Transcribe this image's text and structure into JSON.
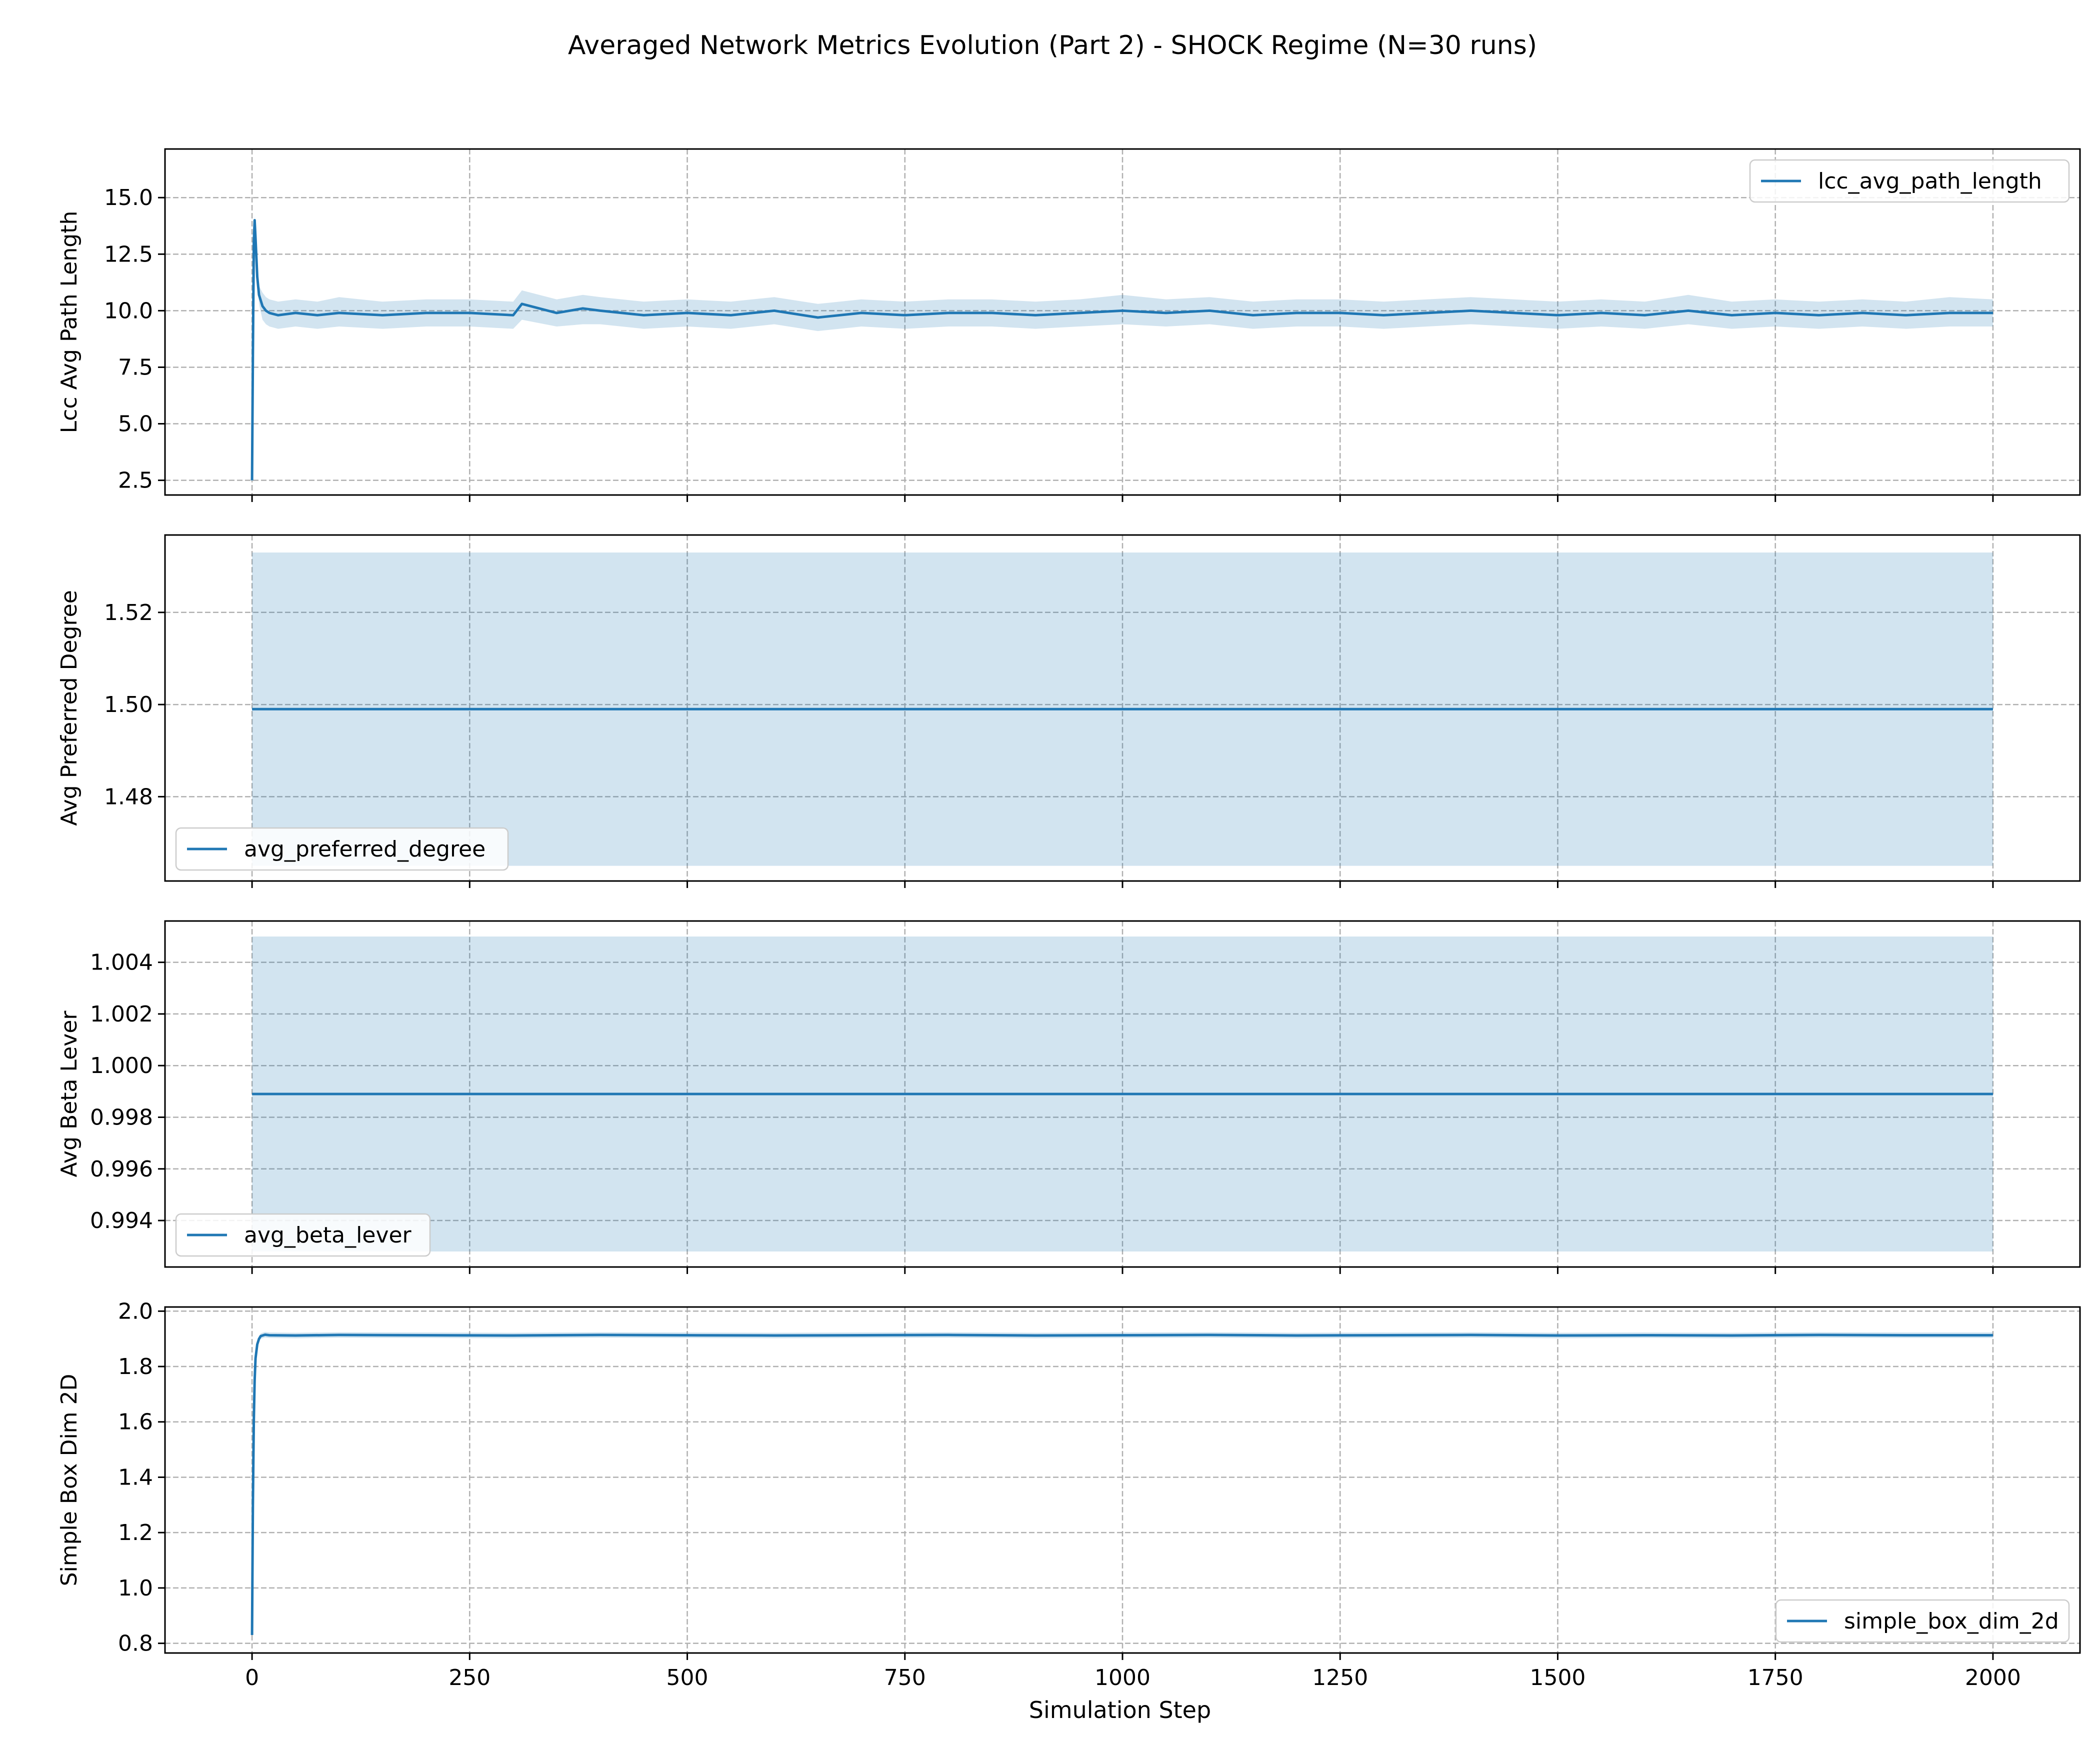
{
  "figure": {
    "title": "Averaged Network Metrics Evolution (Part 2) - SHOCK Regime (N=30 runs)",
    "xlabel": "Simulation Step"
  },
  "colors": {
    "line": "#1f77b4",
    "band": "#1f77b4",
    "grid": "#b0b0b0",
    "axes": "#000000"
  },
  "chart_data": [
    {
      "type": "line",
      "name": "panel-lcc-avg-path-length",
      "ylabel": "Lcc Avg Path Length",
      "xlim": [
        -100,
        2100
      ],
      "ylim": [
        1.85,
        17.15
      ],
      "xticks": [
        0,
        250,
        500,
        750,
        1000,
        1250,
        1500,
        1750,
        2000
      ],
      "yticks": [
        2.5,
        5.0,
        7.5,
        10.0,
        12.5,
        15.0
      ],
      "ytick_labels": [
        "2.5",
        "5.0",
        "7.5",
        "10.0",
        "12.5",
        "15.0"
      ],
      "legend": {
        "label": "lcc_avg_path_length",
        "loc": "upper-right"
      },
      "series": {
        "name": "lcc_avg_path_length",
        "x": [
          0,
          1,
          2,
          3,
          4,
          6,
          8,
          12,
          16,
          20,
          30,
          50,
          75,
          100,
          150,
          200,
          250,
          300,
          310,
          350,
          380,
          400,
          450,
          500,
          550,
          600,
          650,
          700,
          750,
          800,
          850,
          900,
          950,
          1000,
          1050,
          1100,
          1150,
          1200,
          1250,
          1300,
          1350,
          1400,
          1450,
          1500,
          1550,
          1600,
          1650,
          1700,
          1750,
          1800,
          1850,
          1900,
          1950,
          2000
        ],
        "y": [
          2.5,
          8.0,
          13.0,
          14.0,
          13.2,
          11.5,
          10.7,
          10.2,
          10.0,
          9.9,
          9.8,
          9.9,
          9.8,
          9.9,
          9.8,
          9.9,
          9.9,
          9.8,
          10.3,
          9.9,
          10.1,
          10.0,
          9.8,
          9.9,
          9.8,
          10.0,
          9.7,
          9.9,
          9.8,
          9.9,
          9.9,
          9.8,
          9.9,
          10.0,
          9.9,
          10.0,
          9.8,
          9.9,
          9.9,
          9.8,
          9.9,
          10.0,
          9.9,
          9.8,
          9.9,
          9.8,
          10.0,
          9.8,
          9.9,
          9.8,
          9.9,
          9.8,
          9.9,
          9.9
        ],
        "band_lower": [
          2.5,
          7.9,
          12.8,
          13.8,
          13.0,
          11.3,
          10.3,
          9.6,
          9.4,
          9.3,
          9.2,
          9.3,
          9.2,
          9.3,
          9.2,
          9.3,
          9.3,
          9.2,
          9.6,
          9.3,
          9.4,
          9.4,
          9.2,
          9.3,
          9.2,
          9.4,
          9.1,
          9.3,
          9.2,
          9.3,
          9.3,
          9.2,
          9.3,
          9.4,
          9.3,
          9.4,
          9.2,
          9.3,
          9.3,
          9.2,
          9.3,
          9.4,
          9.3,
          9.2,
          9.3,
          9.2,
          9.4,
          9.2,
          9.3,
          9.2,
          9.3,
          9.2,
          9.3,
          9.3
        ],
        "band_upper": [
          2.5,
          8.1,
          13.2,
          14.2,
          13.4,
          11.7,
          11.1,
          10.8,
          10.6,
          10.5,
          10.4,
          10.5,
          10.4,
          10.6,
          10.4,
          10.5,
          10.5,
          10.4,
          10.9,
          10.5,
          10.7,
          10.6,
          10.4,
          10.5,
          10.4,
          10.6,
          10.3,
          10.5,
          10.4,
          10.5,
          10.5,
          10.4,
          10.5,
          10.7,
          10.5,
          10.6,
          10.4,
          10.5,
          10.5,
          10.4,
          10.5,
          10.6,
          10.5,
          10.4,
          10.5,
          10.4,
          10.7,
          10.4,
          10.5,
          10.4,
          10.5,
          10.4,
          10.6,
          10.5
        ]
      }
    },
    {
      "type": "line",
      "name": "panel-avg-preferred-degree",
      "ylabel": "Avg Preferred Degree",
      "xlim": [
        -100,
        2100
      ],
      "ylim": [
        1.4617,
        1.5368
      ],
      "xticks": [
        0,
        250,
        500,
        750,
        1000,
        1250,
        1500,
        1750,
        2000
      ],
      "yticks": [
        1.48,
        1.5,
        1.52
      ],
      "ytick_labels": [
        "1.48",
        "1.50",
        "1.52"
      ],
      "legend": {
        "label": "avg_preferred_degree",
        "loc": "lower-left"
      },
      "series": {
        "name": "avg_preferred_degree",
        "x": [
          0,
          2000
        ],
        "y": [
          1.499,
          1.499
        ],
        "band_lower": [
          1.465,
          1.465
        ],
        "band_upper": [
          1.533,
          1.533
        ]
      }
    },
    {
      "type": "line",
      "name": "panel-avg-beta-lever",
      "ylabel": "Avg Beta Lever",
      "xlim": [
        -100,
        2100
      ],
      "ylim": [
        0.9922,
        1.0056
      ],
      "xticks": [
        0,
        250,
        500,
        750,
        1000,
        1250,
        1500,
        1750,
        2000
      ],
      "yticks": [
        0.994,
        0.996,
        0.998,
        1.0,
        1.002,
        1.004
      ],
      "ytick_labels": [
        "0.994",
        "0.996",
        "0.998",
        "1.000",
        "1.002",
        "1.004"
      ],
      "legend": {
        "label": "avg_beta_lever",
        "loc": "lower-left"
      },
      "series": {
        "name": "avg_beta_lever",
        "x": [
          0,
          2000
        ],
        "y": [
          0.9989,
          0.9989
        ],
        "band_lower": [
          0.9928,
          0.9928
        ],
        "band_upper": [
          1.005,
          1.005
        ]
      }
    },
    {
      "type": "line",
      "name": "panel-simple-box-dim-2d",
      "ylabel": "Simple Box Dim 2D",
      "xlim": [
        -100,
        2100
      ],
      "ylim": [
        0.765,
        2.015
      ],
      "xticks": [
        0,
        250,
        500,
        750,
        1000,
        1250,
        1500,
        1750,
        2000
      ],
      "xtick_labels": [
        "0",
        "250",
        "500",
        "750",
        "1000",
        "1250",
        "1500",
        "1750",
        "2000"
      ],
      "yticks": [
        0.8,
        1.0,
        1.2,
        1.4,
        1.6,
        1.8,
        2.0
      ],
      "ytick_labels": [
        "0.8",
        "1.0",
        "1.2",
        "1.4",
        "1.6",
        "1.8",
        "2.0"
      ],
      "legend": {
        "label": "simple_box_dim_2d",
        "loc": "lower-right"
      },
      "series": {
        "name": "simple_box_dim_2d",
        "x": [
          0,
          1,
          2,
          3,
          4,
          6,
          8,
          10,
          15,
          20,
          50,
          100,
          200,
          300,
          400,
          500,
          600,
          700,
          800,
          900,
          1000,
          1100,
          1200,
          1300,
          1400,
          1500,
          1600,
          1700,
          1800,
          1900,
          2000
        ],
        "y": [
          0.83,
          1.3,
          1.6,
          1.75,
          1.83,
          1.88,
          1.9,
          1.91,
          1.915,
          1.913,
          1.912,
          1.914,
          1.913,
          1.912,
          1.914,
          1.913,
          1.912,
          1.913,
          1.914,
          1.912,
          1.913,
          1.914,
          1.912,
          1.913,
          1.914,
          1.912,
          1.913,
          1.912,
          1.914,
          1.913,
          1.913
        ],
        "band_lower": [
          0.83,
          1.29,
          1.59,
          1.74,
          1.82,
          1.87,
          1.89,
          1.9,
          1.905,
          1.903,
          1.902,
          1.904,
          1.903,
          1.902,
          1.904,
          1.903,
          1.902,
          1.903,
          1.904,
          1.902,
          1.903,
          1.904,
          1.902,
          1.903,
          1.904,
          1.902,
          1.903,
          1.902,
          1.904,
          1.903,
          1.903
        ],
        "band_upper": [
          0.83,
          1.31,
          1.61,
          1.76,
          1.84,
          1.89,
          1.91,
          1.92,
          1.925,
          1.923,
          1.922,
          1.924,
          1.923,
          1.922,
          1.924,
          1.923,
          1.922,
          1.923,
          1.924,
          1.922,
          1.923,
          1.924,
          1.922,
          1.923,
          1.924,
          1.922,
          1.923,
          1.922,
          1.924,
          1.923,
          1.923
        ]
      }
    }
  ]
}
